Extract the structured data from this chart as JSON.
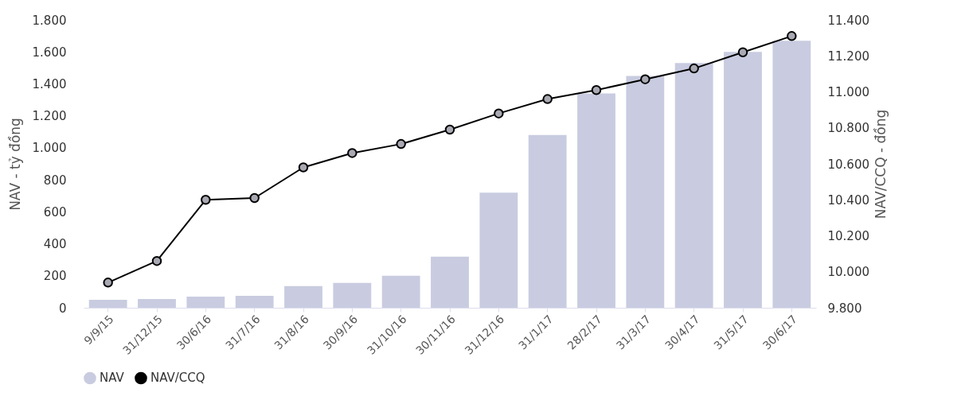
{
  "chart_data": {
    "type": "bar",
    "ylabel": "NAV - tỷ đồng",
    "y2label": "NAV/CCQ - đồng",
    "categories": [
      "9/9/15",
      "31/12/15",
      "30/6/16",
      "31/7/16",
      "31/8/16",
      "30/9/16",
      "31/10/16",
      "30/11/16",
      "31/12/16",
      "31/1/17",
      "28/2/17",
      "31/3/17",
      "30/4/17",
      "31/5/17",
      "30/6/17"
    ],
    "series": [
      {
        "name": "NAV",
        "color": "#c9cce0",
        "values": [
          50,
          55,
          70,
          75,
          135,
          155,
          200,
          320,
          720,
          1080,
          1340,
          1450,
          1530,
          1600,
          1670
        ]
      },
      {
        "name": "NAV/CCQ",
        "type": "line",
        "axis": "y2",
        "color": "#000000",
        "values": [
          9940,
          10060,
          10400,
          10410,
          10580,
          10660,
          10710,
          10790,
          10880,
          10960,
          11010,
          11070,
          11130,
          11220,
          11310
        ]
      }
    ],
    "ylim": [
      0,
      1800
    ],
    "yticks": [
      0,
      200,
      400,
      600,
      800,
      {
        "value": 1000,
        "label": "1.000"
      },
      {
        "value": 1200,
        "label": "1.200"
      },
      {
        "value": 1400,
        "label": "1.400"
      },
      {
        "value": 1600,
        "label": "1.600"
      },
      {
        "value": 1800,
        "label": "1.800"
      }
    ],
    "y2lim": [
      9800,
      11400
    ],
    "y2ticks": [
      {
        "value": 9800,
        "label": "9.800"
      },
      {
        "value": 10000,
        "label": "10.000"
      },
      {
        "value": 10200,
        "label": "10.200"
      },
      {
        "value": 10400,
        "label": "10.400"
      },
      {
        "value": 10600,
        "label": "10.600"
      },
      {
        "value": 10800,
        "label": "10.800"
      },
      {
        "value": 11000,
        "label": "11.000"
      },
      {
        "value": 11200,
        "label": "11.200"
      },
      {
        "value": 11400,
        "label": "11.400"
      }
    ],
    "marker": "circle",
    "grid": false,
    "legend": "bottom"
  }
}
